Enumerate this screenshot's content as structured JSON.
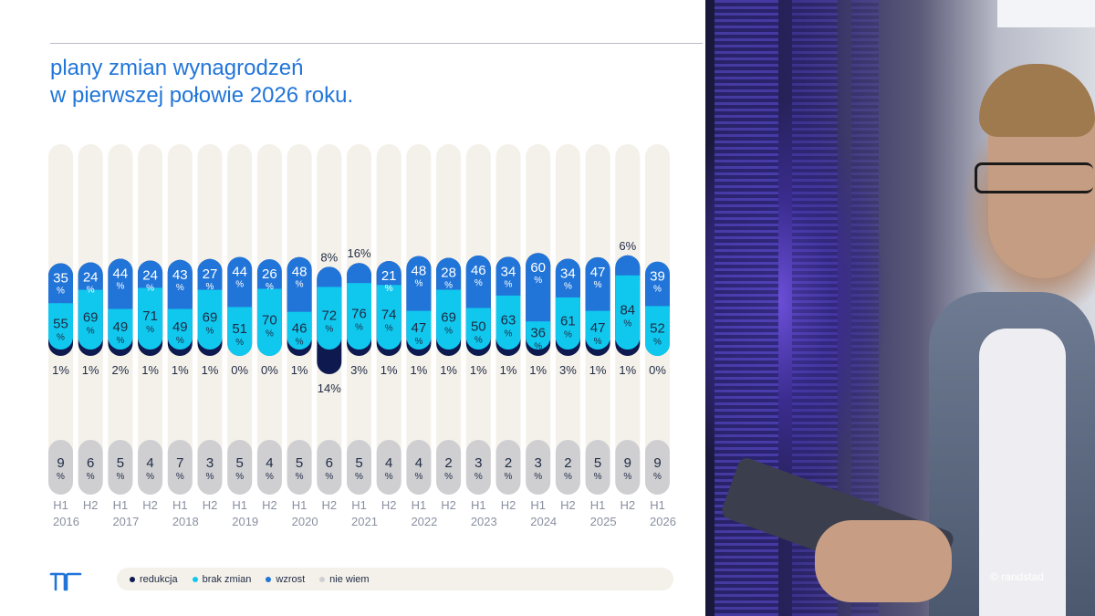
{
  "title": {
    "line1": "plany zmian wynagrodzeń",
    "line2": "w pierwszej połowie 2026 roku."
  },
  "colors": {
    "redukcja": "#0e1a4f",
    "brak_zmian": "#10c8ee",
    "wzrost": "#2175d9",
    "nie_wiem": "#cfcfd2",
    "track": "#f4f1ea",
    "text": "#1f2a44"
  },
  "chart_data": {
    "type": "bar",
    "stacked": true,
    "unit": "%",
    "categories": [
      "H1 2016",
      "H2 2016",
      "H1 2017",
      "H2 2017",
      "H1 2018",
      "H2 2018",
      "H1 2019",
      "H2 2019",
      "H1 2020",
      "H2 2020",
      "H1 2021",
      "H2 2021",
      "H1 2022",
      "H2 2022",
      "H1 2023",
      "H2 2023",
      "H1 2024",
      "H2 2024",
      "H1 2025",
      "H2 2025",
      "H1 2026"
    ],
    "tick_labels": [
      [
        "H1",
        "2016"
      ],
      [
        "H2",
        ""
      ],
      [
        "H1",
        "2017"
      ],
      [
        "H2",
        ""
      ],
      [
        "H1",
        "2018"
      ],
      [
        "H2",
        ""
      ],
      [
        "H1",
        "2019"
      ],
      [
        "H2",
        ""
      ],
      [
        "H1",
        "2020"
      ],
      [
        "H2",
        ""
      ],
      [
        "H1",
        "2021"
      ],
      [
        "H2",
        ""
      ],
      [
        "H1",
        "2022"
      ],
      [
        "H2",
        ""
      ],
      [
        "H1",
        "2023"
      ],
      [
        "H2",
        ""
      ],
      [
        "H1",
        "2024"
      ],
      [
        "H2",
        ""
      ],
      [
        "H1",
        "2025"
      ],
      [
        "H2",
        ""
      ],
      [
        "H1",
        "2026"
      ]
    ],
    "series": [
      {
        "name": "wzrost",
        "values": [
          35,
          24,
          44,
          24,
          43,
          27,
          44,
          26,
          48,
          8,
          16,
          21,
          48,
          28,
          46,
          34,
          60,
          34,
          47,
          6,
          39
        ]
      },
      {
        "name": "brak zmian",
        "values": [
          55,
          69,
          49,
          71,
          49,
          69,
          51,
          70,
          46,
          72,
          76,
          74,
          47,
          69,
          50,
          63,
          36,
          61,
          47,
          84,
          52
        ]
      },
      {
        "name": "redukcja",
        "values": [
          1,
          1,
          2,
          1,
          1,
          1,
          0,
          0,
          1,
          14,
          3,
          1,
          1,
          1,
          1,
          1,
          1,
          3,
          1,
          1,
          0
        ]
      },
      {
        "name": "nie wiem",
        "values": [
          9,
          6,
          5,
          4,
          7,
          3,
          5,
          4,
          5,
          6,
          5,
          4,
          4,
          2,
          3,
          2,
          3,
          2,
          5,
          9,
          9
        ]
      }
    ],
    "legend": [
      "redukcja",
      "brak zmian",
      "wzrost",
      "nie wiem"
    ],
    "legend_position": "bottom",
    "grid": false
  },
  "logo": {
    "icon": "randstad-logo-icon"
  },
  "copyright": "© randstad"
}
